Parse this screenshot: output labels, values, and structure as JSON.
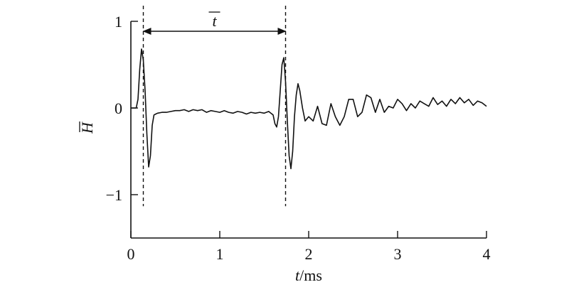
{
  "chart_data": {
    "type": "line",
    "title": "",
    "xlabel_var": "t",
    "xlabel_unit": "/ms",
    "ylabel": "H",
    "xlim": [
      0,
      4
    ],
    "ylim": [
      -1.5,
      1
    ],
    "xticks": [
      0,
      1,
      2,
      3,
      4
    ],
    "xtick_labels": [
      "0",
      "1",
      "2",
      "3",
      "4"
    ],
    "yticks": [
      1,
      0,
      -1
    ],
    "ytick_labels": [
      "1",
      "0",
      "−1"
    ],
    "grid": false,
    "line_color": "#111111",
    "annotation": {
      "label": "t",
      "x_start": 0.14,
      "x_end": 1.74,
      "dashed_lines": [
        0.14,
        1.74
      ],
      "dashed_range": [
        -1.1,
        1.0
      ]
    },
    "series": [
      {
        "x": [
          0.0,
          0.06,
          0.08,
          0.1,
          0.12,
          0.14,
          0.16,
          0.18,
          0.2,
          0.22,
          0.24,
          0.26,
          0.28,
          0.3,
          0.35,
          0.4,
          0.45,
          0.5,
          0.55,
          0.6,
          0.65,
          0.7,
          0.75,
          0.8,
          0.85,
          0.9,
          0.95,
          1.0,
          1.05,
          1.1,
          1.15,
          1.2,
          1.25,
          1.3,
          1.35,
          1.4,
          1.45,
          1.5,
          1.55,
          1.6,
          1.62,
          1.64,
          1.66,
          1.68,
          1.7,
          1.72,
          1.74,
          1.76,
          1.78,
          1.8,
          1.82,
          1.84,
          1.86,
          1.88,
          1.9,
          1.93,
          1.96,
          2.0,
          2.05,
          2.1,
          2.15,
          2.2,
          2.25,
          2.3,
          2.35,
          2.4,
          2.45,
          2.5,
          2.55,
          2.6,
          2.65,
          2.7,
          2.75,
          2.8,
          2.85,
          2.9,
          2.95,
          3.0,
          3.05,
          3.1,
          3.15,
          3.2,
          3.25,
          3.3,
          3.35,
          3.4,
          3.45,
          3.5,
          3.55,
          3.6,
          3.65,
          3.7,
          3.75,
          3.8,
          3.85,
          3.9,
          3.95,
          4.0
        ],
        "y": [
          0.0,
          0.0,
          0.1,
          0.45,
          0.68,
          0.55,
          0.2,
          -0.3,
          -0.68,
          -0.55,
          -0.2,
          -0.08,
          -0.07,
          -0.06,
          -0.05,
          -0.05,
          -0.04,
          -0.03,
          -0.03,
          -0.02,
          -0.04,
          -0.02,
          -0.03,
          -0.02,
          -0.05,
          -0.03,
          -0.04,
          -0.05,
          -0.03,
          -0.05,
          -0.06,
          -0.04,
          -0.05,
          -0.07,
          -0.05,
          -0.06,
          -0.05,
          -0.06,
          -0.04,
          -0.08,
          -0.18,
          -0.22,
          -0.1,
          0.2,
          0.5,
          0.58,
          0.3,
          -0.15,
          -0.55,
          -0.7,
          -0.5,
          -0.1,
          0.15,
          0.28,
          0.2,
          0.0,
          -0.15,
          -0.1,
          -0.15,
          0.02,
          -0.18,
          -0.2,
          0.05,
          -0.1,
          -0.2,
          -0.1,
          0.1,
          0.1,
          -0.1,
          -0.05,
          0.15,
          0.12,
          -0.05,
          0.1,
          -0.05,
          0.02,
          0.0,
          0.1,
          0.05,
          -0.03,
          0.05,
          0.0,
          0.08,
          0.05,
          0.02,
          0.12,
          0.04,
          0.08,
          0.02,
          0.1,
          0.05,
          0.12,
          0.06,
          0.1,
          0.03,
          0.08,
          0.06,
          0.02
        ]
      }
    ]
  }
}
